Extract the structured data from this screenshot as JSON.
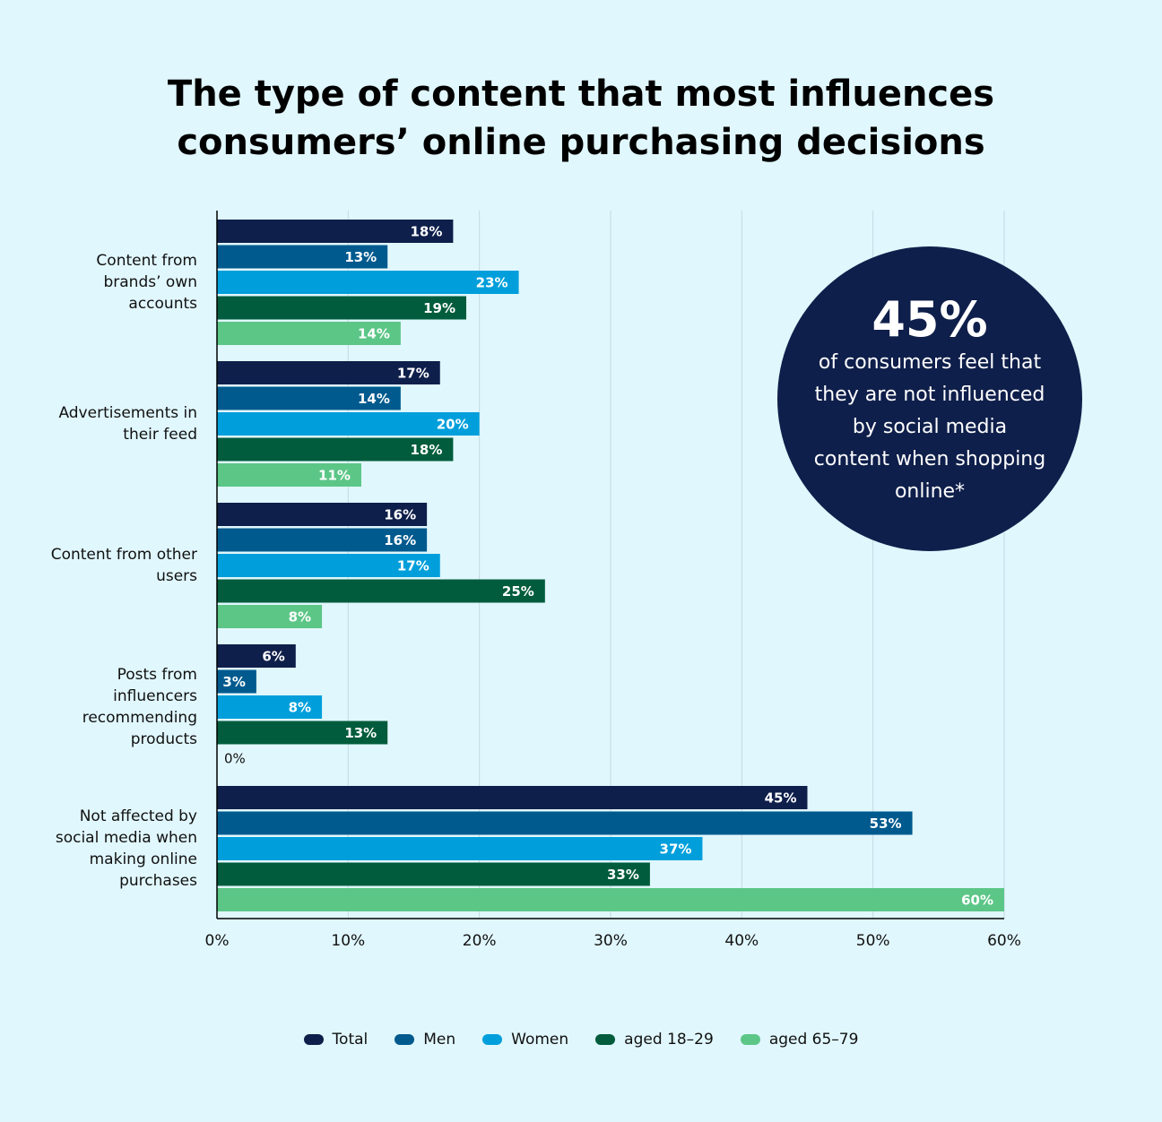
{
  "chart_data": {
    "type": "bar",
    "orientation": "horizontal",
    "title": "The type of content that most influences consumers’ online purchasing decisions",
    "categories": [
      "Content from brands’ own accounts",
      "Advertisements in their feed",
      "Content from other users",
      "Posts from influencers recommending products",
      "Not affected by social media when making online purchases"
    ],
    "series": [
      {
        "name": "Total",
        "color": "#0f1f4b",
        "values": [
          18,
          17,
          16,
          6,
          45
        ],
        "value_labels": [
          "18%",
          "17%",
          "16%",
          "6%",
          "45%"
        ]
      },
      {
        "name": "Men",
        "color": "#005a8e",
        "values": [
          13,
          14,
          16,
          3,
          53
        ],
        "value_labels": [
          "13%",
          "14%",
          "16%",
          "3%",
          "53%"
        ]
      },
      {
        "name": "Women",
        "color": "#009fdb",
        "values": [
          23,
          20,
          17,
          8,
          37
        ],
        "value_labels": [
          "23%",
          "20%",
          "17%",
          "8%",
          "37%"
        ]
      },
      {
        "name": "aged 18–29",
        "color": "#005c3c",
        "values": [
          19,
          18,
          25,
          13,
          33
        ],
        "value_labels": [
          "19%",
          "18%",
          "25%",
          "13%",
          "33%"
        ]
      },
      {
        "name": "aged 65–79",
        "color": "#5cc687",
        "values": [
          14,
          11,
          8,
          0,
          60
        ],
        "value_labels": [
          "14%",
          "11%",
          "8%",
          "0%",
          "60%"
        ]
      }
    ],
    "xlim": [
      0,
      60
    ],
    "xticks": [
      {
        "value": 0,
        "label": "0%"
      },
      {
        "value": 10,
        "label": "10%"
      },
      {
        "value": 20,
        "label": "20%"
      },
      {
        "value": 30,
        "label": "30%"
      },
      {
        "value": 40,
        "label": "40%"
      },
      {
        "value": 50,
        "label": "50%"
      },
      {
        "value": 60,
        "label": "60%"
      }
    ],
    "grid": true,
    "legend": "bottom",
    "annotation": {
      "value": 45,
      "label": "45%",
      "text": "of consumers feel that they are not influenced by social media content when shopping online*"
    }
  }
}
